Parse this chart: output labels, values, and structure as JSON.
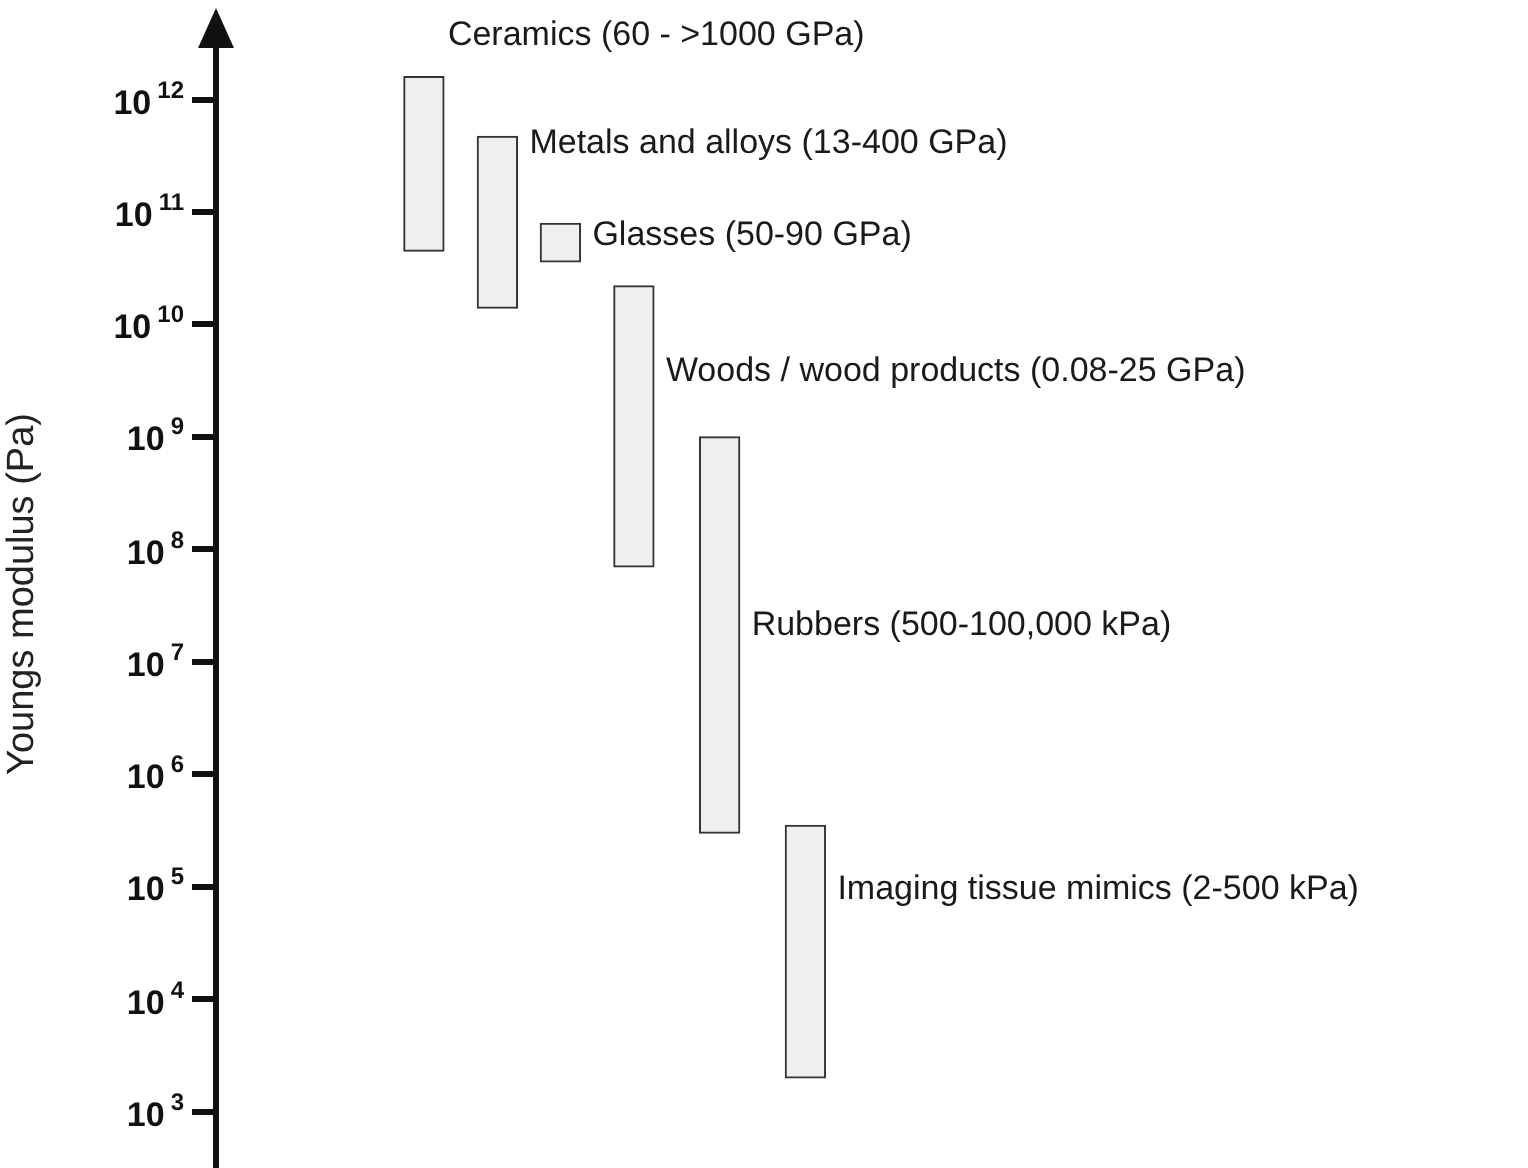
{
  "chart_data": {
    "type": "bar",
    "ylabel": "Youngs modulus (Pa)",
    "categories": [
      null,
      null,
      null,
      null,
      null,
      null
    ],
    "annotations": [
      "Ceramics (60 - >1000 GPa)",
      "Metals and alloys (13-400 GPa)",
      "Glasses (50-90 GPa)",
      "Woods / wood products (0.08-25 GPa)",
      "Rubbers (500-100,000 kPa)",
      "Imaging tissue mimics (2-500 kPa)"
    ],
    "base": [
      45000000000,
      14000000000,
      36000000000,
      70000000,
      300000,
      2000
    ],
    "values": [
      1555000000000,
      456000000000,
      43000000000,
      21930000000,
      999700000,
      348000
    ],
    "color": "#eeefef",
    "log": "y",
    "ylim": [
      315,
      5100000000000
    ],
    "yticks": [
      {
        "value": 1000,
        "label": "10$^{3}$"
      },
      {
        "value": 10000,
        "label": "10$^{4}$"
      },
      {
        "value": 100000,
        "label": "10$^{5}$"
      },
      {
        "value": 1000000,
        "label": "10$^{6}$"
      },
      {
        "value": 10000000,
        "label": "10$^{7}$"
      },
      {
        "value": 100000000,
        "label": "10$^{8}$"
      },
      {
        "value": 1000000000,
        "label": "10$^{9}$"
      },
      {
        "value": 10000000000,
        "label": "10$^{10}$"
      },
      {
        "value": 100000000000,
        "label": "10$^{11}$"
      },
      {
        "value": 1000000000000,
        "label": "10$^{12}$"
      }
    ],
    "grid": false,
    "legend": false
  }
}
